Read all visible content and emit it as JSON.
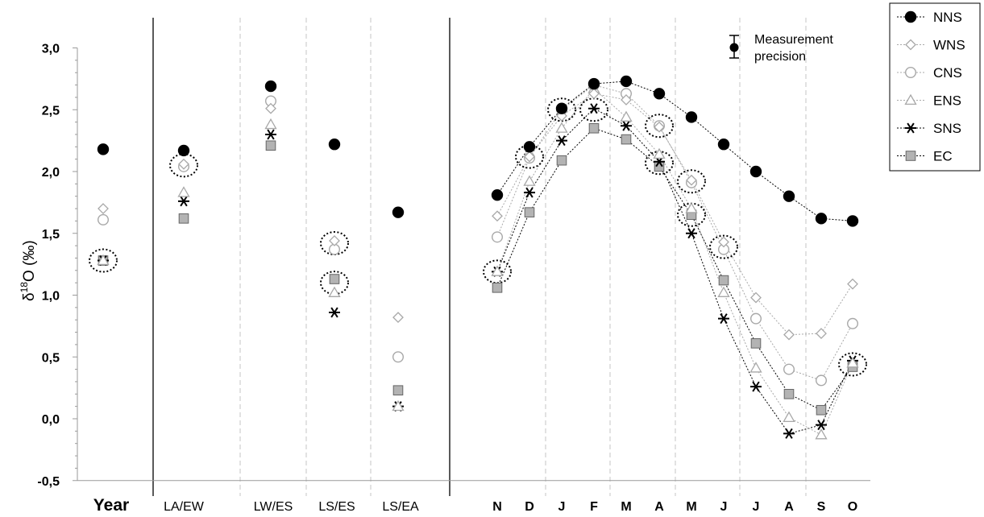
{
  "chart_data": {
    "type": "scatter",
    "ylabel": "δ18O (‰)",
    "ylim": [
      -0.5,
      3.0
    ],
    "yticks": [
      "-0,5",
      "0,0",
      "0,5",
      "1,0",
      "1,5",
      "2,0",
      "2,5",
      "3,0"
    ],
    "categories": [
      "Year",
      "LA/EW",
      "LW/ES",
      "LS/ES",
      "LS/EA",
      "N",
      "D",
      "J",
      "F",
      "M",
      "A",
      "M",
      "J",
      "J",
      "A",
      "S",
      "O"
    ],
    "annotation": [
      "Measurement",
      "precision"
    ],
    "series": [
      {
        "name": "NNS",
        "values": [
          2.18,
          2.17,
          2.69,
          2.22,
          1.67,
          1.81,
          2.2,
          2.51,
          2.71,
          2.73,
          2.63,
          2.44,
          2.22,
          2.0,
          1.8,
          1.62,
          1.6
        ]
      },
      {
        "name": "WNS",
        "values": [
          1.7,
          2.06,
          2.51,
          1.44,
          0.82,
          1.64,
          2.12,
          2.45,
          2.63,
          2.58,
          2.36,
          1.93,
          1.43,
          0.98,
          0.68,
          0.69,
          1.09
        ]
      },
      {
        "name": "CNS",
        "values": [
          1.61,
          2.04,
          2.57,
          1.37,
          0.5,
          1.47,
          2.11,
          2.5,
          2.7,
          2.63,
          2.37,
          1.91,
          1.37,
          0.81,
          0.4,
          0.31,
          0.77
        ]
      },
      {
        "name": "ENS",
        "values": [
          1.28,
          1.83,
          2.38,
          1.02,
          0.1,
          1.19,
          1.92,
          2.35,
          2.67,
          2.44,
          2.14,
          1.7,
          1.02,
          0.41,
          0.01,
          -0.13,
          0.45
        ]
      },
      {
        "name": "SNS",
        "values": [
          1.28,
          1.76,
          2.3,
          0.86,
          0.1,
          1.19,
          1.83,
          2.25,
          2.51,
          2.37,
          2.08,
          1.5,
          0.81,
          0.26,
          -0.12,
          -0.05,
          0.47
        ]
      },
      {
        "name": "EC",
        "values": [
          1.28,
          1.62,
          2.21,
          1.13,
          0.23,
          1.06,
          1.67,
          2.09,
          2.35,
          2.26,
          2.04,
          1.65,
          1.12,
          0.61,
          0.2,
          0.07,
          0.42
        ]
      }
    ],
    "highlighted": [
      {
        "category": "Year",
        "value": 1.28
      },
      {
        "category": "LA/EW",
        "value": 2.05
      },
      {
        "category": "LS/ES",
        "value": 1.42
      },
      {
        "category": "LS/ES",
        "value": 1.1
      },
      {
        "category": "N",
        "value": 1.19
      },
      {
        "category": "D",
        "value": 2.12
      },
      {
        "category": "J",
        "value": 2.5
      },
      {
        "category": "F",
        "value": 2.5
      },
      {
        "category": "A",
        "value": 2.37
      },
      {
        "category": "A",
        "value": 2.07
      },
      {
        "category": "M",
        "value": 1.92
      },
      {
        "category": "M",
        "value": 1.65
      },
      {
        "category": "J",
        "value": 1.39
      },
      {
        "category": "O",
        "value": 0.44
      }
    ],
    "legend_position": "top-right",
    "grid": false
  }
}
